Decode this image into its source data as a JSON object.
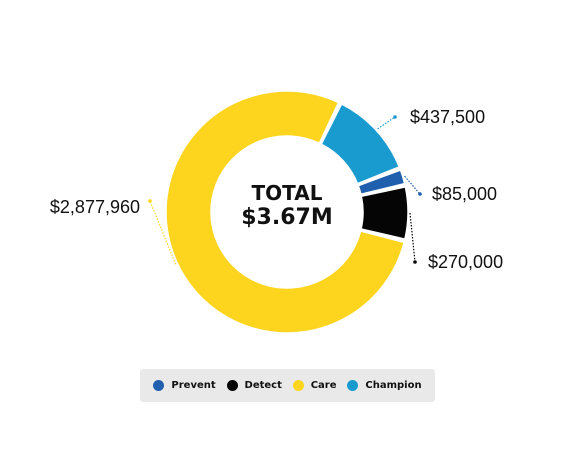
{
  "chart_data": {
    "type": "pie",
    "donut": true,
    "center_title": "TOTAL",
    "center_value": "$3.67M",
    "slices": [
      {
        "name": "Champion",
        "value": 437500,
        "label": "$437,500",
        "color": "#1a9bd0"
      },
      {
        "name": "Prevent",
        "value": 85000,
        "label": "$85,000",
        "color": "#1f5fae"
      },
      {
        "name": "Detect",
        "value": 270000,
        "label": "$270,000",
        "color": "#050505"
      },
      {
        "name": "Care",
        "value": 2877960,
        "label": "$2,877,960",
        "color": "#fdd51f"
      }
    ],
    "legend": [
      {
        "name": "Prevent",
        "color": "#1f5fae"
      },
      {
        "name": "Detect",
        "color": "#050505"
      },
      {
        "name": "Care",
        "color": "#fdd51f"
      },
      {
        "name": "Champion",
        "color": "#1a9bd0"
      }
    ],
    "legend_position": "bottom"
  }
}
